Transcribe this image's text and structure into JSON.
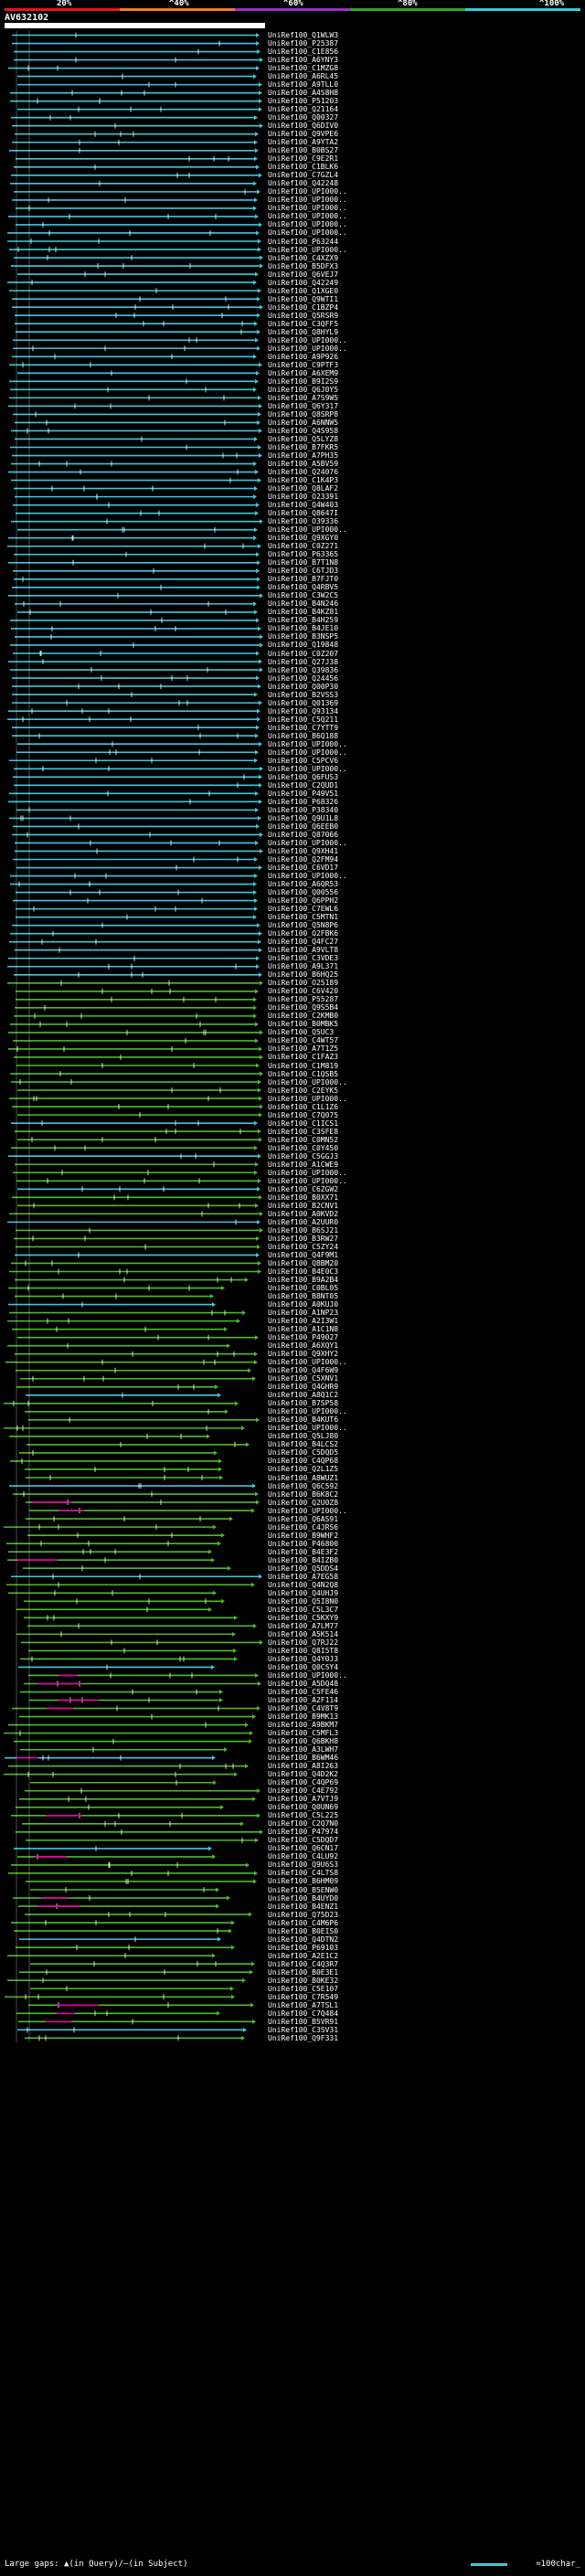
{
  "scale": {
    "labels": [
      "20%",
      "^40%",
      "^60%",
      "^80%",
      "^100%"
    ],
    "colors": [
      "#e8141c",
      "#f07e1e",
      "#9a2fc6",
      "#2ea82b",
      "#3cc8d8"
    ]
  },
  "query": {
    "name": "AV632102",
    "start": "1",
    "end": "507"
  },
  "colors": {
    "cyan": "#3cc8d8",
    "green": "#4fb82e",
    "magenta": "#e000a0",
    "gap": "#ffffff",
    "bg": "#000000"
  },
  "hits": [
    "UniRef100_Q1WLW3",
    "UniRef100_P25387",
    "UniRef100_C1E856",
    "UniRef100_A6YNY3",
    "UniRef100_C1MZG8",
    "UniRef100_A6RL45",
    "UniRef100_A9TLL0",
    "UniRef100_A4S8H8",
    "UniRef100_P51203",
    "UniRef100_Q21164",
    "UniRef100_Q00327",
    "UniRef100_Q6DIV0",
    "UniRef100_Q9VPE6",
    "UniRef100_A9YTA2",
    "UniRef100_B0BS27",
    "UniRef100_C9E2R1",
    "UniRef100_C1BLK6",
    "UniRef100_C7GZL4",
    "UniRef100_Q42248",
    "UniRef100_UPI000..",
    "UniRef100_UPI000..",
    "UniRef100_UPI000..",
    "UniRef100_UPI000..",
    "UniRef100_UPI000..",
    "UniRef100_UPI000..",
    "UniRef100_P63244",
    "UniRef100_UPI000..",
    "UniRef100_C4XZX9",
    "UniRef100_B5DFX3",
    "UniRef100_Q6VEJ7",
    "UniRef100_Q42249",
    "UniRef100_Q1XGE0",
    "UniRef100_Q9WTI1",
    "UniRef100_C1BZP4",
    "UniRef100_Q5RSR9",
    "UniRef100_C3QFF5",
    "UniRef100_Q8HYL9",
    "UniRef100_UPI000..",
    "UniRef100_UPI000..",
    "UniRef100_A9P926",
    "UniRef100_C9PTF3",
    "UniRef100_A6XEM9",
    "UniRef100_B9I2S9",
    "UniRef100_Q6J0Y5",
    "UniRef100_A7S9W5",
    "UniRef100_Q6Y317",
    "UniRef100_Q8SRP8",
    "UniRef100_A6NNW5",
    "UniRef100_Q4S958",
    "UniRef100_Q5LYZ8",
    "UniRef100_B7FKR5",
    "UniRef100_A7PH35",
    "UniRef100_A5BV59",
    "UniRef100_Q24076",
    "UniRef100_C1K4P3",
    "UniRef100_Q8LAF2",
    "UniRef100_O23391",
    "UniRef100_Q4W403",
    "UniRef100_Q8647I",
    "UniRef100_O39336",
    "UniRef100_UPI000..",
    "UniRef100_Q9XGY0",
    "UniRef100_C0Z271",
    "UniRef100_P63365",
    "UniRef100_B7T1N8",
    "UniRef100_C6TJD3",
    "UniRef100_B7FJT0",
    "UniRef100_Q4RBV5",
    "UniRef100_C3W2C5",
    "UniRef100_B4N246",
    "UniRef100_B4KZ81",
    "UniRef100_B4H259",
    "UniRef100_B4JE10",
    "UniRef100_B3NSP5",
    "UniRef100_Q19848",
    "UniRef100_C0Z207",
    "UniRef100_Q27J38",
    "UniRef100_Q39836",
    "UniRef100_Q24456",
    "UniRef100_Q00P30",
    "UniRef100_B2VSS3",
    "UniRef100_Q01369",
    "UniRef100_Q93134",
    "UniRef100_C5Q211",
    "UniRef100_C7YTT9",
    "UniRef100_B6Q188",
    "UniRef100_UPI000..",
    "UniRef100_UPI000..",
    "UniRef100_C5PCV6",
    "UniRef100_UPI000..",
    "UniRef100_Q6FUS3",
    "UniRef100_C2QUD1",
    "UniRef100_P49V51",
    "UniRef100_P68326",
    "UniRef100_P38340",
    "UniRef100_Q9U1L8",
    "UniRef100_Q6EEB0",
    "UniRef100_Q87066",
    "UniRef100_UPI000..",
    "UniRef100_Q9XH41",
    "UniRef100_Q2FM94",
    "UniRef100_C6VD17",
    "UniRef100_UPI000..",
    "UniRef100_A6QR53",
    "UniRef100_Q00556",
    "UniRef100_Q6PPH2",
    "UniRef100_C7EWL6",
    "UniRef100_C5MTN1",
    "UniRef100_Q5N8P6",
    "UniRef100_Q2FBK6",
    "UniRef100_Q4FC27",
    "UniRef100_A9VLT8",
    "UniRef100_C3VDE3",
    "UniRef100_A9L371",
    "UniRef100_B6HQ25",
    "UniRef100_O25189",
    "UniRef100_C6V420",
    "UniRef100_P55287",
    "UniRef100_Q9S5B4",
    "UniRef100_C2KMB0",
    "UniRef100_B0MBK5",
    "UniRef100_Q5UC3",
    "UniRef100_C4WT57",
    "UniRef100_A7T1Z5",
    "UniRef100_C1FAZ3",
    "UniRef100_C1M819",
    "UniRef100_C1QSB5",
    "UniRef100_UPI000..",
    "UniRef100_C2EYK5",
    "UniRef100_UPI000..",
    "UniRef100_C1L1Z6",
    "UniRef100_C7Q075",
    "UniRef100_C1ICS1",
    "UniRef100_C3SFE8",
    "UniRef100_C0MN52",
    "UniRef100_C0Y450",
    "UniRef100_C5GGJ3",
    "UniRef100_A1CWE9",
    "UniRef100_UPI000..",
    "UniRef100_UPI000..",
    "UniRef100_C6ZGW2",
    "UniRef100_B0XX71",
    "UniRef100_B2CNV1",
    "UniRef100_A0KVD2",
    "UniRef100_A2UUR0",
    "UniRef100_B6SJ21",
    "UniRef100_B3RW27",
    "UniRef100_C5ZY24",
    "UniRef100_Q4F9M1",
    "UniRef100_Q8BM20",
    "UniRef100_B4E0C3",
    "UniRef100_B9A2B4",
    "UniRef100_C0BL05",
    "UniRef100_B8NT05",
    "UniRef100_A0KUJ0",
    "UniRef100_A1NP23",
    "UniRef100_A2I3W1",
    "UniRef100_A1C1N8",
    "UniRef100_P49027",
    "UniRef100_A6XQY1",
    "UniRef100_Q9XHY2",
    "UniRef100_UPI000..",
    "UniRef100_Q4F6W9",
    "UniRef100_C5XNV1",
    "UniRef100_Q4GHR9",
    "UniRef100_A8Q1C2",
    "UniRef100_B7SP58",
    "UniRef100_UPI000..",
    "UniRef100_B4KUT6",
    "UniRef100_UPI000..",
    "UniRef100_Q5LJ80",
    "UniRef100_B4LCS2",
    "UniRef100_C5DQD5",
    "UniRef100_C4QP68",
    "UniRef100_Q2L1Z5",
    "UniRef100_A8WUZ1",
    "UniRef100_Q6C592",
    "UniRef100_B6K8C2",
    "UniRef100_Q2U0Z8",
    "UniRef100_UPI000..",
    "UniRef100_Q6AS91",
    "UniRef100_C4JRS6",
    "UniRef100_B9WHF2",
    "UniRef100_P46800",
    "UniRef100_B4E3F2",
    "UniRef100_B4IZB0",
    "UniRef100_Q5DDS4",
    "UniRef100_A7EG58",
    "UniRef100_Q4N2Q8",
    "UniRef100_Q4UHJ9",
    "UniRef100_Q5I8N0",
    "UniRef100_C5L3C7",
    "UniRef100_C5KXY9",
    "UniRef100_A7LM77",
    "UniRef100_A5K514",
    "UniRef100_Q7RJ22",
    "UniRef100_Q8I5T8",
    "UniRef100_Q4Y0J3",
    "UniRef100_Q0CSY4",
    "UniRef100_UPI000..",
    "UniRef100_A5DQ48",
    "UniRef100_C5FE46",
    "UniRef100_A2F114",
    "UniRef100_C4V8T9",
    "UniRef100_B9MK13",
    "UniRef100_A9BKM7",
    "UniRef100_C5MFL3",
    "UniRef100_Q6BKH8",
    "UniRef100_A3LWH7",
    "UniRef100_B6WM46",
    "UniRef100_A8I263",
    "UniRef100_Q4D2K2",
    "UniRef100_C4QP69",
    "UniRef100_C4E792",
    "UniRef100_A7VTJ9",
    "UniRef100_Q0UN69",
    "UniRef100_C5L225",
    "UniRef100_C2Q7N0",
    "UniRef100_P47974",
    "UniRef100_C5DQD7",
    "UniRef100_Q6CN17",
    "UniRef100_C4LU92",
    "UniRef100_Q9U6S3",
    "UniRef100_C4LTS8",
    "UniRef100_B6HM09",
    "UniRef100_B5ENW0",
    "UniRef100_B4UYD0",
    "UniRef100_B4ENZ1",
    "UniRef100_Q75D23",
    "UniRef100_C4M6P6",
    "UniRef100_B0EIS0",
    "UniRef100_Q4DTN2",
    "UniRef100_P69103",
    "UniRef100_A2E1C2",
    "UniRef100_C4Q3R7",
    "UniRef100_B0E3E1",
    "UniRef100_B0KE32",
    "UniRef100_C5E107",
    "UniRef100_C7R549",
    "UniRef100_A7TSL1",
    "UniRef100_C7Q484",
    "UniRef100_B5VR91",
    "UniRef100_C3SV31",
    "UniRef100_Q9F331"
  ],
  "legend": {
    "left": "Large gaps: ▲(in Query)/—(in Subject)",
    "right": "=100char_"
  }
}
